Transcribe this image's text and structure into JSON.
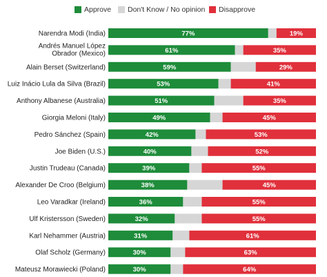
{
  "legend": {
    "approve": "Approve",
    "dont_know": "Don't Know / No opinion",
    "disapprove": "Disapprove"
  },
  "colors": {
    "approve": "#1e8c3a",
    "dont_know": "#d6d6d6",
    "disapprove": "#e0303b"
  },
  "chart_data": {
    "type": "bar",
    "orientation": "horizontal",
    "stacked": true,
    "xlim": [
      0,
      100
    ],
    "categories": [
      "Narendra Modi (India)",
      "Andrés Manuel López|Obrador (Mexico)",
      "Alain Berset (Switzerland)",
      "Luiz Inácio Lula da Silva (Brazil)",
      "Anthony Albanese (Australia)",
      "Giorgia Meloni (Italy)",
      "Pedro Sánchez (Spain)",
      "Joe Biden (U.S.)",
      "Justin Trudeau (Canada)",
      "Alexander De Croo (Belgium)",
      "Leo Varadkar (Ireland)",
      "Ulf Kristersson (Sweden)",
      "Karl Nehammer (Austria)",
      "Olaf Scholz (Germany)",
      "Mateusz Morawiecki (Poland)"
    ],
    "series": [
      {
        "name": "Approve",
        "values": [
          77,
          61,
          59,
          53,
          51,
          49,
          42,
          40,
          39,
          38,
          36,
          32,
          31,
          30,
          30
        ]
      },
      {
        "name": "Don't Know / No opinion",
        "values": [
          4,
          4,
          12,
          6,
          14,
          6,
          5,
          8,
          6,
          17,
          9,
          13,
          8,
          7,
          6
        ]
      },
      {
        "name": "Disapprove",
        "values": [
          19,
          35,
          29,
          41,
          35,
          45,
          53,
          52,
          55,
          45,
          55,
          55,
          61,
          63,
          64
        ]
      }
    ],
    "value_labels": {
      "approve": [
        "77%",
        "61%",
        "59%",
        "53%",
        "51%",
        "49%",
        "42%",
        "40%",
        "39%",
        "38%",
        "36%",
        "32%",
        "31%",
        "30%",
        "30%"
      ],
      "disapprove": [
        "19%",
        "35%",
        "29%",
        "41%",
        "35%",
        "45%",
        "53%",
        "52%",
        "55%",
        "45%",
        "55%",
        "55%",
        "61%",
        "63%",
        "64%"
      ]
    }
  }
}
